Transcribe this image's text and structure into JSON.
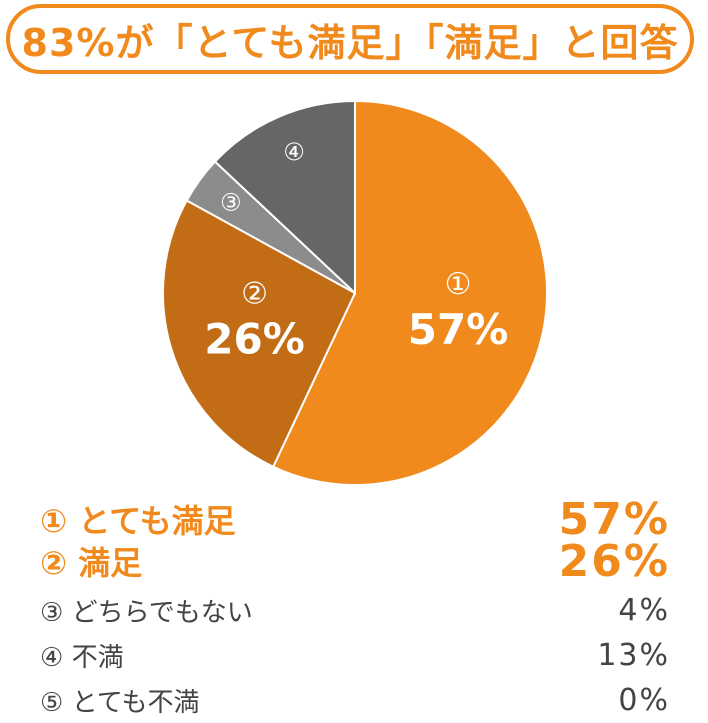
{
  "title": "83%が「とても満足」「満足」と回答",
  "chart_data": {
    "type": "pie",
    "title": "83%が「とても満足」「満足」と回答",
    "categories": [
      "とても満足",
      "満足",
      "どちらでもない",
      "不満",
      "とても不満"
    ],
    "values": [
      57,
      26,
      4,
      13,
      0
    ],
    "markers": [
      "①",
      "②",
      "③",
      "④",
      "⑤"
    ],
    "slice_labels": [
      "57%",
      "26%",
      "",
      "",
      ""
    ],
    "colors": [
      "#f18a1c",
      "#c26c16",
      "#8c8c8c",
      "#666666",
      "#cccccc"
    ],
    "unit": "%"
  },
  "legend": [
    {
      "label": "① とても満足",
      "value": "57%"
    },
    {
      "label": "② 満足",
      "value": "26%"
    },
    {
      "label": "③ どちらでもない",
      "value": "4%"
    },
    {
      "label": "④ 不満",
      "value": "13%"
    },
    {
      "label": "⑤ とても不満",
      "value": "0%"
    }
  ]
}
